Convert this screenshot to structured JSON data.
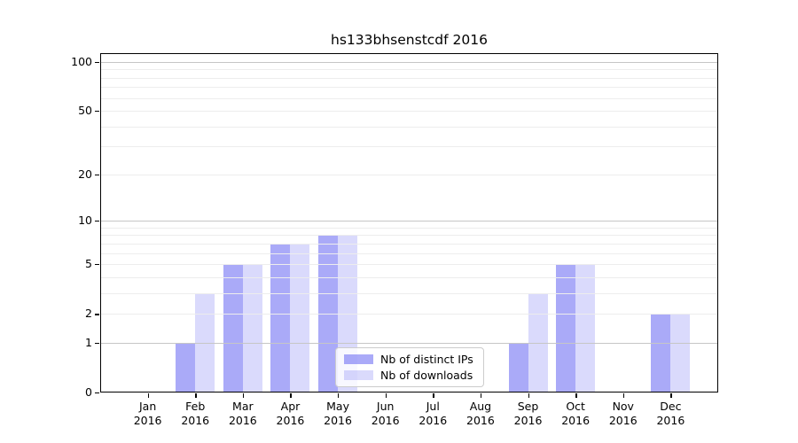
{
  "figure": {
    "background": "#ffffff"
  },
  "chart_data": {
    "type": "bar",
    "title": "hs133bhsenstcdf 2016",
    "categories": [
      "Jan",
      "Feb",
      "Mar",
      "Apr",
      "May",
      "Jun",
      "Jul",
      "Aug",
      "Sep",
      "Oct",
      "Nov",
      "Dec"
    ],
    "x_tick_year": "2016",
    "series": [
      {
        "name": "Nb of distinct IPs",
        "values": [
          0,
          1,
          5,
          7,
          8,
          0,
          0,
          0,
          1,
          5,
          0,
          2
        ],
        "color": "rgba(85,85,242,0.5)"
      },
      {
        "name": "Nb of downloads",
        "values": [
          0,
          3,
          5,
          7,
          8,
          0,
          0,
          0,
          3,
          5,
          0,
          2
        ],
        "color": "rgba(85,85,242,0.22)"
      }
    ],
    "yscale": "log(value+1)",
    "ytick_labels": [
      0,
      1,
      2,
      5,
      10,
      20,
      50,
      100
    ],
    "ylim": [
      0,
      115
    ],
    "grid": "on",
    "legend_position": "inside lower center"
  }
}
